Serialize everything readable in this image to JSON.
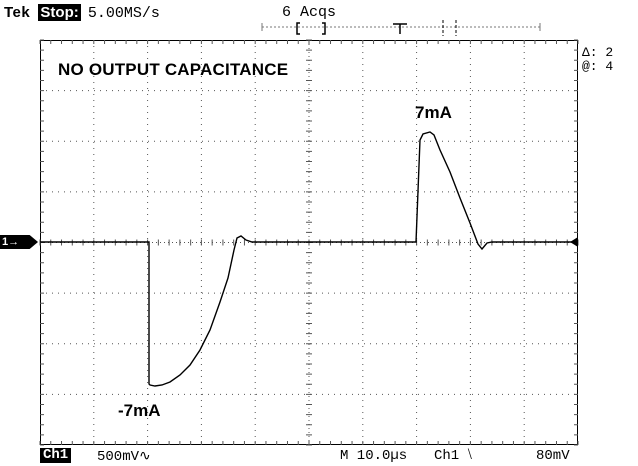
{
  "status": {
    "brand": "Tek",
    "state": "Stop:",
    "sample_rate": "5.00MS/s",
    "acquisitions": "6 Acqs"
  },
  "cursor_readout": {
    "delta": "Δ: 2",
    "at": "@: 4"
  },
  "screen": {
    "title": "NO OUTPUT CAPACITANCE",
    "annotation_positive": "7mA",
    "annotation_negative": "-7mA",
    "channel_marker": "1→"
  },
  "bottom": {
    "channel": "Ch1",
    "vertical_scale": "500mV∿",
    "timebase": "M 10.0µs",
    "trigger_source": "Ch1 ⧵",
    "trigger_level": "80mV"
  },
  "trace": {
    "color": "#000000",
    "grid_color": "#555555"
  }
}
